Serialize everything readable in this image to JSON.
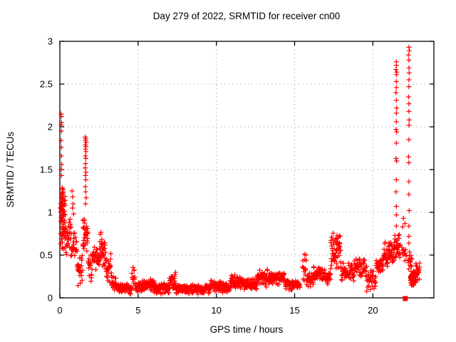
{
  "chart_data": {
    "type": "scatter",
    "title": "Day 279 of 2022, SRMTID for receiver cn00",
    "xlabel": "GPS time / hours",
    "ylabel": "SRMTID / TECUs",
    "xlim": [
      0,
      23.9
    ],
    "ylim": [
      0,
      3
    ],
    "xticks": [
      0,
      5,
      10,
      15,
      20
    ],
    "yticks": [
      "0",
      "0.5",
      "1",
      "1.5",
      "2",
      "2.5",
      "3"
    ],
    "ytick_values": [
      0,
      0.5,
      1,
      1.5,
      2,
      2.5,
      3
    ],
    "grid": "dashed-both-axes",
    "legend": "none",
    "colors": {
      "marker": "#ff0000",
      "grid": "#b0b0b0",
      "axis": "#000000",
      "text": "#000000",
      "background": "#ffffff"
    },
    "marker_glyph": "+",
    "series": [
      {
        "name": "SRMTID",
        "marker": "plus",
        "color": "#ff0000",
        "points_outliers": [
          [
            0.08,
            2.15
          ],
          [
            0.1,
            2.12
          ],
          [
            0.11,
            2.05
          ],
          [
            0.09,
            2.02
          ],
          [
            0.1,
            1.95
          ],
          [
            0.08,
            1.84
          ],
          [
            0.1,
            1.76
          ],
          [
            0.1,
            1.66
          ],
          [
            0.12,
            1.56
          ],
          [
            0.09,
            1.5
          ],
          [
            0.1,
            1.43
          ],
          [
            0.78,
            1.25
          ],
          [
            0.82,
            1.18
          ],
          [
            0.85,
            1.1
          ],
          [
            0.8,
            1.05
          ],
          [
            0.88,
            0.98
          ],
          [
            1.62,
            1.88
          ],
          [
            1.66,
            1.86
          ],
          [
            1.64,
            1.84
          ],
          [
            1.68,
            1.82
          ],
          [
            1.63,
            1.79
          ],
          [
            1.66,
            1.77
          ],
          [
            1.64,
            1.74
          ],
          [
            1.67,
            1.71
          ],
          [
            1.63,
            1.66
          ],
          [
            1.66,
            1.63
          ],
          [
            1.64,
            1.57
          ],
          [
            1.62,
            1.52
          ],
          [
            1.67,
            1.47
          ],
          [
            1.64,
            1.43
          ],
          [
            1.66,
            1.38
          ],
          [
            1.63,
            1.3
          ],
          [
            1.65,
            1.24
          ],
          [
            1.68,
            1.17
          ],
          [
            1.64,
            1.1
          ],
          [
            21.5,
            2.76
          ],
          [
            21.5,
            2.72
          ],
          [
            21.47,
            2.67
          ],
          [
            21.53,
            2.64
          ],
          [
            21.5,
            2.61
          ],
          [
            21.5,
            2.53
          ],
          [
            21.5,
            2.46
          ],
          [
            21.48,
            2.4
          ],
          [
            21.5,
            2.31
          ],
          [
            21.52,
            2.22
          ],
          [
            21.5,
            2.16
          ],
          [
            21.5,
            2.06
          ],
          [
            21.48,
            1.97
          ],
          [
            21.52,
            1.94
          ],
          [
            21.5,
            1.81
          ],
          [
            21.48,
            1.63
          ],
          [
            21.52,
            1.6
          ],
          [
            21.5,
            1.38
          ],
          [
            21.48,
            1.24
          ],
          [
            21.5,
            1.07
          ],
          [
            21.5,
            0.97
          ],
          [
            21.5,
            0.84
          ],
          [
            22.3,
            2.93
          ],
          [
            22.33,
            2.89
          ],
          [
            22.27,
            2.84
          ],
          [
            22.3,
            2.78
          ],
          [
            22.3,
            2.69
          ],
          [
            22.32,
            2.63
          ],
          [
            22.3,
            2.55
          ],
          [
            22.3,
            2.47
          ],
          [
            22.28,
            2.35
          ],
          [
            22.3,
            2.27
          ],
          [
            22.3,
            2.18
          ],
          [
            22.32,
            2.08
          ],
          [
            22.3,
            2.02
          ],
          [
            22.3,
            1.85
          ],
          [
            22.28,
            1.65
          ],
          [
            22.3,
            1.58
          ],
          [
            22.3,
            1.36
          ],
          [
            22.3,
            1.21
          ],
          [
            22.32,
            1.02
          ],
          [
            22.3,
            0.84
          ],
          [
            22.3,
            0.72
          ],
          [
            22.3,
            0.64
          ],
          [
            21.95,
            0.93
          ],
          [
            22.05,
            0.87
          ],
          [
            21.9,
            0.83
          ]
        ],
        "dense_bands": [
          [
            0.05,
            0.35,
            0.45,
            1.35,
            55
          ],
          [
            0.06,
            0.22,
            0.85,
            1.35,
            30
          ],
          [
            0.35,
            0.75,
            0.45,
            0.95,
            30
          ],
          [
            0.75,
            1.1,
            0.4,
            0.8,
            22
          ],
          [
            1.1,
            1.45,
            0.12,
            0.55,
            25
          ],
          [
            1.45,
            1.8,
            0.35,
            1.05,
            30
          ],
          [
            1.8,
            2.1,
            0.15,
            0.6,
            20
          ],
          [
            2.1,
            2.55,
            0.28,
            0.65,
            30
          ],
          [
            2.55,
            2.9,
            0.35,
            0.78,
            30
          ],
          [
            2.9,
            3.3,
            0.15,
            0.55,
            26
          ],
          [
            3.3,
            3.6,
            0.06,
            0.3,
            24
          ],
          [
            3.6,
            4.6,
            0.04,
            0.18,
            70
          ],
          [
            4.6,
            4.8,
            0.1,
            0.45,
            12
          ],
          [
            4.8,
            5.4,
            0.05,
            0.2,
            45
          ],
          [
            5.4,
            6.1,
            0.06,
            0.24,
            55
          ],
          [
            6.1,
            7.0,
            0.04,
            0.18,
            65
          ],
          [
            7.0,
            7.4,
            0.08,
            0.33,
            28
          ],
          [
            7.4,
            9.6,
            0.04,
            0.16,
            150
          ],
          [
            9.6,
            10.3,
            0.06,
            0.22,
            50
          ],
          [
            10.3,
            10.9,
            0.05,
            0.18,
            42
          ],
          [
            10.9,
            11.7,
            0.1,
            0.28,
            55
          ],
          [
            11.7,
            12.6,
            0.08,
            0.24,
            60
          ],
          [
            12.6,
            13.3,
            0.12,
            0.35,
            50
          ],
          [
            13.3,
            14.4,
            0.15,
            0.32,
            75
          ],
          [
            14.4,
            15.35,
            0.08,
            0.22,
            60
          ],
          [
            15.5,
            15.75,
            0.15,
            0.55,
            14
          ],
          [
            15.75,
            16.2,
            0.12,
            0.3,
            30
          ],
          [
            16.2,
            16.7,
            0.18,
            0.38,
            32
          ],
          [
            16.7,
            17.3,
            0.15,
            0.35,
            38
          ],
          [
            17.3,
            17.95,
            0.3,
            0.8,
            55
          ],
          [
            17.95,
            18.8,
            0.18,
            0.42,
            50
          ],
          [
            18.8,
            19.6,
            0.22,
            0.5,
            48
          ],
          [
            19.6,
            20.2,
            0.05,
            0.35,
            30
          ],
          [
            20.2,
            20.7,
            0.25,
            0.5,
            32
          ],
          [
            20.7,
            21.4,
            0.35,
            0.68,
            55
          ],
          [
            21.4,
            21.75,
            0.45,
            0.75,
            30
          ],
          [
            21.85,
            22.15,
            0.4,
            0.62,
            12
          ],
          [
            22.25,
            22.5,
            0.3,
            0.6,
            14
          ],
          [
            22.4,
            22.75,
            0.13,
            0.33,
            70
          ],
          [
            22.75,
            23.0,
            0.2,
            0.45,
            16
          ]
        ]
      }
    ],
    "flagged_point": {
      "x": 22.07,
      "y": 0.0,
      "marker": "filled-square",
      "color": "#ff0000"
    }
  }
}
